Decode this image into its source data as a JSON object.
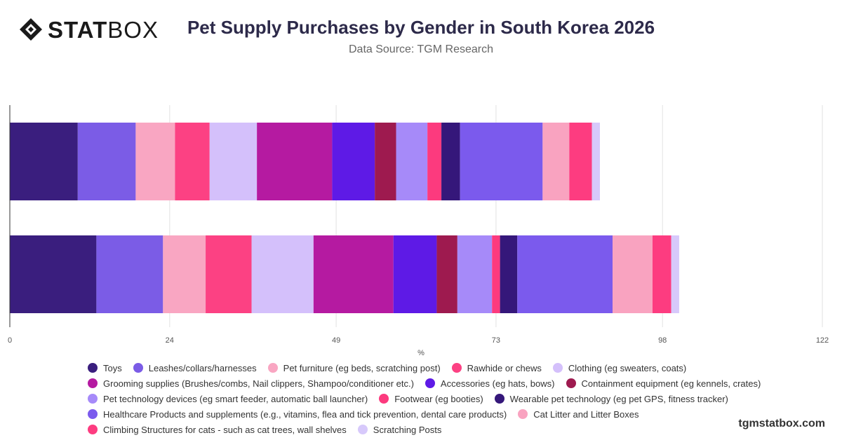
{
  "header": {
    "logo_bold": "STAT",
    "logo_light": "BOX",
    "title": "Pet Supply Purchases by Gender in South Korea 2026",
    "subtitle": "Data Source: TGM Research"
  },
  "footer": {
    "site": "tgmstatbox.com"
  },
  "chart_data": {
    "type": "bar",
    "orientation": "horizontal",
    "stacked": true,
    "title": "Pet Supply Purchases by Gender in South Korea 2026",
    "xlabel": "%",
    "ylabel": "",
    "xlim": [
      0,
      122
    ],
    "xticks": [
      0,
      24,
      49,
      73,
      98,
      122
    ],
    "grid": true,
    "legend_position": "bottom",
    "categories": [
      "",
      ""
    ],
    "series": [
      {
        "name": "Toys",
        "color": "#3a1e7e",
        "values": [
          10.2,
          13.0
        ]
      },
      {
        "name": "Leashes/collars/harnesses",
        "color": "#7b5ce6",
        "values": [
          8.7,
          10.0
        ]
      },
      {
        "name": "Pet furniture (eg beds, scratching post)",
        "color": "#f9a6c2",
        "values": [
          5.9,
          6.4
        ]
      },
      {
        "name": "Rawhide or chews",
        "color": "#fc4183",
        "values": [
          5.2,
          6.9
        ]
      },
      {
        "name": "Clothing (eg sweaters, coats)",
        "color": "#d4c0fb",
        "values": [
          7.1,
          9.3
        ]
      },
      {
        "name": "Grooming supplies (Brushes/combs, Nail clippers, Shampoo/conditioner etc.)",
        "color": "#b51aa1",
        "values": [
          11.3,
          12.0
        ]
      },
      {
        "name": "Accessories (eg hats, bows)",
        "color": "#5e1ae6",
        "values": [
          6.4,
          6.5
        ]
      },
      {
        "name": "Containment equipment (eg kennels, crates)",
        "color": "#9e1a4f",
        "values": [
          3.2,
          3.1
        ]
      },
      {
        "name": "Pet technology devices (eg smart feeder, automatic ball launcher)",
        "color": "#a68af9",
        "values": [
          4.7,
          5.2
        ]
      },
      {
        "name": "Footwear (eg booties)",
        "color": "#fc3a7e",
        "values": [
          2.1,
          1.2
        ]
      },
      {
        "name": "Wearable pet technology (eg pet GPS, fitness tracker)",
        "color": "#35177a",
        "values": [
          2.8,
          2.6
        ]
      },
      {
        "name": "Healthcare Products and supplements (e.g., vitamins, flea and tick prevention, dental care products)",
        "color": "#7b5aed",
        "values": [
          12.4,
          14.3
        ]
      },
      {
        "name": "Cat Litter and Litter Boxes",
        "color": "#f9a3c0",
        "values": [
          4.0,
          6.0
        ]
      },
      {
        "name": "Climbing Structures for cats - such as cat trees, wall shelves",
        "color": "#fd3c80",
        "values": [
          3.4,
          2.8
        ]
      },
      {
        "name": "Scratching Posts",
        "color": "#d7c9fb",
        "values": [
          1.2,
          1.2
        ]
      }
    ]
  },
  "legend_rows": [
    [
      0,
      1,
      2,
      3,
      4
    ],
    [
      5,
      6,
      7
    ],
    [
      8,
      9,
      10
    ],
    [
      11,
      12
    ],
    [
      13,
      14
    ]
  ]
}
